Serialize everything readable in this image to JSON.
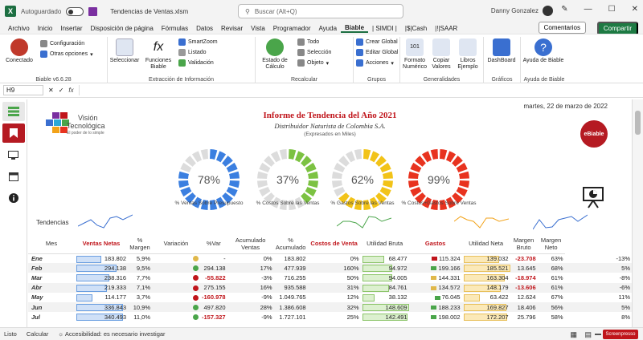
{
  "titlebar": {
    "autosave": "Autoguardado",
    "doc": "Tendencias de Ventas.xlsm",
    "search": "Buscar (Alt+Q)",
    "user": "Danny Gonzalez"
  },
  "menu": [
    "Archivo",
    "Inicio",
    "Insertar",
    "Disposición de página",
    "Fórmulas",
    "Datos",
    "Revisar",
    "Vista",
    "Programador",
    "Ayuda",
    "Biable",
    "| SIMDI |",
    "|$|Cash",
    "|!|SAAR"
  ],
  "menu_active": "Biable",
  "comments_label": "Comentarios",
  "share_label": "Compartir",
  "ribbon": {
    "g1": {
      "connect": "Conectado",
      "config": "Configuración",
      "other": "Otras opciones",
      "label": "Biable v6.6.28"
    },
    "g2": {
      "select": "Seleccionar",
      "functions": "Funciones Biable",
      "smartzoom": "SmartZoom",
      "list": "Listado",
      "validate": "Validación",
      "label": "Extracción de Información"
    },
    "g3": {
      "status": "Estado de Cálculo",
      "all": "Todo",
      "selection": "Selección",
      "object": "Objeto",
      "label": "Recalcular"
    },
    "g4": {
      "create": "Crear Global",
      "edit": "Editar Global",
      "actions": "Acciones",
      "label": "Grupos"
    },
    "g5": {
      "format": "Formato Numérico",
      "copy": "Copiar Valores",
      "books": "Libros Ejemplo",
      "label": "Generalidades"
    },
    "g6": {
      "dashboard": "DashBoard",
      "label": "Gráficos"
    },
    "g7": {
      "help": "Ayuda de Biable",
      "label": "Ayuda de Biable"
    }
  },
  "formula": {
    "cell": "H9",
    "fx": "fx"
  },
  "report": {
    "date": "martes, 22 de marzo de 2022",
    "title": "Informe de Tendencia del Año 2021",
    "subtitle": "Distribuidor Naturista de Colombia S.A.",
    "unit": "(Expresados en Miles)",
    "logo_main": "Visión",
    "logo_sub": "Tecnológica",
    "logo_tag": "El poder de lo simple",
    "badge": "eBiable"
  },
  "gauges": [
    {
      "value": "78%",
      "pct": 0.78,
      "label": "% Ventas Sobre Presupuesto",
      "color": "#3b7fe0"
    },
    {
      "value": "37%",
      "pct": 0.37,
      "label": "% Costos Sobre las Ventas",
      "color": "#7cc242"
    },
    {
      "value": "62%",
      "pct": 0.62,
      "label": "% Gastos Sobre las Ventas",
      "color": "#f2c318"
    },
    {
      "value": "99%",
      "pct": 0.99,
      "label": "% Costos+Gastos Sobre Ventas",
      "color": "#e8331f"
    }
  ],
  "trend_label": "Tendencias",
  "columns": [
    "Mes",
    "Ventas Netas",
    "% Margen",
    "Variación",
    "%Var",
    "Acumulado Ventas",
    "% Acumulado",
    "Costos de Venta",
    "Utilidad Bruta",
    "Gastos",
    "Utilidad Neta",
    "Margen Bruto",
    "Margen Neto"
  ],
  "rows": [
    {
      "mes": "Ene",
      "ventas": "183.802",
      "vfill": 0.54,
      "margen": "5,9%",
      "mdot": "#e0b84a",
      "variacion": "-",
      "var": "0%",
      "acum": "183.802",
      "pacum": "0%",
      "costos": "68.477",
      "cfill": 0.46,
      "cmark": "#c0151b",
      "ub": "115.324",
      "gastos": "139.032",
      "gfill": 0.75,
      "un": "-23.708",
      "unneg": true,
      "mb": "63%",
      "mn": "-13%"
    },
    {
      "mes": "Feb",
      "ventas": "294.138",
      "vfill": 0.87,
      "margen": "9,5%",
      "mdot": "#4aa54a",
      "variacion": "294.138",
      "var": "17%",
      "acum": "477.939",
      "pacum": "160%",
      "costos": "94.972",
      "cfill": 0.64,
      "cmark": "#4aa54a",
      "ub": "199.166",
      "gastos": "185.521",
      "gfill": 1.0,
      "un": "13.645",
      "unneg": false,
      "mb": "68%",
      "mn": "5%"
    },
    {
      "mes": "Mar",
      "ventas": "238.316",
      "vfill": 0.7,
      "margen": "7,7%",
      "mdot": "#c0151b",
      "variacion": "-55.822",
      "var": "-3%",
      "acum": "716.255",
      "pacum": "50%",
      "costos": "94.005",
      "cfill": 0.63,
      "cmark": "#e0b84a",
      "ub": "144.331",
      "gastos": "163.304",
      "gfill": 0.88,
      "un": "-18.974",
      "unneg": true,
      "mb": "61%",
      "mn": "-8%"
    },
    {
      "mes": "Abr",
      "ventas": "219.333",
      "vfill": 0.65,
      "margen": "7,1%",
      "mdot": "#c0151b",
      "variacion": "275.155",
      "var": "16%",
      "acum": "935.588",
      "pacum": "31%",
      "costos": "84.761",
      "cfill": 0.57,
      "cmark": "#e0b84a",
      "ub": "134.572",
      "gastos": "148.179",
      "gfill": 0.8,
      "un": "-13.606",
      "unneg": true,
      "mb": "61%",
      "mn": "-6%"
    },
    {
      "mes": "May",
      "ventas": "114.177",
      "vfill": 0.34,
      "margen": "3,7%",
      "mdot": "#c0151b",
      "variacion": "-160.978",
      "var": "-9%",
      "acum": "1.049.765",
      "pacum": "12%",
      "costos": "38.132",
      "cfill": 0.26,
      "cmark": "#4aa54a",
      "ub": "76.045",
      "gastos": "63.422",
      "gfill": 0.34,
      "un": "12.624",
      "unneg": false,
      "mb": "67%",
      "mn": "11%"
    },
    {
      "mes": "Jun",
      "ventas": "336.843",
      "vfill": 1.0,
      "margen": "10,9%",
      "mdot": "#4aa54a",
      "variacion": "497.820",
      "var": "28%",
      "acum": "1.386.608",
      "pacum": "32%",
      "costos": "148.609",
      "cfill": 1.0,
      "cmark": "#4aa54a",
      "ub": "188.233",
      "gastos": "169.827",
      "gfill": 0.92,
      "un": "18.406",
      "unneg": false,
      "mb": "56%",
      "mn": "5%"
    },
    {
      "mes": "Jul",
      "ventas": "340.493",
      "vfill": 1.0,
      "margen": "11,0%",
      "mdot": "#4aa54a",
      "variacion": "-157.327",
      "var": "-9%",
      "acum": "1.727.101",
      "pacum": "25%",
      "costos": "142.491",
      "cfill": 0.96,
      "cmark": "#4aa54a",
      "ub": "198.002",
      "gastos": "172.207",
      "gfill": 0.93,
      "un": "25.796",
      "unneg": false,
      "mb": "58%",
      "mn": "8%"
    }
  ],
  "status": {
    "ready": "Listo",
    "calc": "Calcular",
    "access": "Accesibilidad: es necesario investigar",
    "watermark": "Screenpresso"
  }
}
